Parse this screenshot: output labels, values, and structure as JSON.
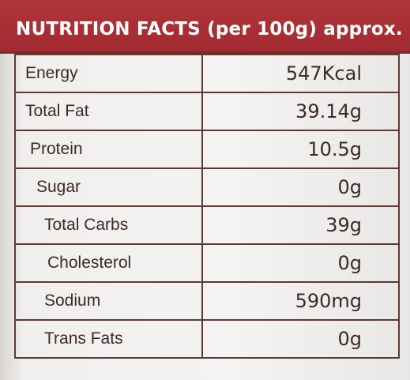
{
  "header": {
    "title": "NUTRITION FACTS (per 100g) approx."
  },
  "table": {
    "rows": [
      [
        "Energy",
        "547Kcal"
      ],
      [
        "Total Fat",
        "39.14g"
      ],
      [
        "Protein",
        "10.5g"
      ],
      [
        "Sugar",
        "0g"
      ],
      [
        "Total Carbs",
        "39g"
      ],
      [
        "Cholesterol",
        "0g"
      ],
      [
        "Sodium",
        "590mg"
      ],
      [
        "Trans Fats",
        "0g"
      ]
    ]
  }
}
